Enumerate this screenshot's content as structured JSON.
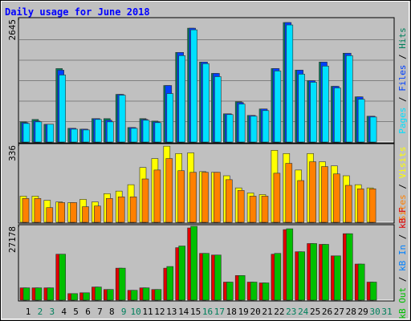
{
  "chart_data": [
    {
      "type": "bar",
      "title": "Daily usage for June 2018",
      "separator": " / ",
      "ylim": [
        0,
        2645
      ],
      "yticks": [
        2645
      ],
      "series": [
        {
          "name": "Hits",
          "color": "#00805c",
          "values": [
            435,
            487,
            383,
            1583,
            296,
            278,
            505,
            505,
            1027,
            313,
            505,
            452,
            1218,
            1931,
            2453,
            1723,
            1479,
            609,
            870,
            574,
            713,
            1583,
            2575,
            1549,
            1322,
            1723,
            1201,
            1914,
            974,
            557,
            0
          ]
        },
        {
          "name": "Files",
          "color": "#0040ff",
          "values": [
            418,
            452,
            383,
            1549,
            296,
            278,
            505,
            470,
            1027,
            313,
            487,
            435,
            1218,
            1931,
            2453,
            1723,
            1479,
            609,
            853,
            574,
            713,
            1583,
            2575,
            1549,
            1322,
            1723,
            1201,
            1914,
            974,
            557,
            0
          ]
        },
        {
          "name": "Pages",
          "color": "#00e0ff",
          "values": [
            400,
            435,
            383,
            1444,
            278,
            261,
            487,
            435,
            1010,
            296,
            470,
            418,
            1044,
            1862,
            2418,
            1688,
            1409,
            592,
            818,
            557,
            678,
            1531,
            2523,
            1462,
            1288,
            1636,
            1166,
            1862,
            922,
            539,
            0
          ]
        }
      ]
    },
    {
      "type": "bar",
      "ylim": [
        0,
        336
      ],
      "yticks": [
        336
      ],
      "series": [
        {
          "name": "Visits",
          "color": "#ffff00",
          "values": [
            114,
            114,
            96,
            89,
            86,
            100,
            89,
            125,
            136,
            164,
            239,
            278,
            332,
            300,
            303,
            221,
            218,
            203,
            150,
            128,
            121,
            314,
            300,
            228,
            300,
            264,
            246,
            203,
            164,
            150,
            0
          ]
        },
        {
          "name": "Sites",
          "color": "#ff8000",
          "values": [
            104,
            104,
            64,
            86,
            86,
            68,
            71,
            104,
            111,
            111,
            189,
            228,
            278,
            225,
            218,
            218,
            218,
            186,
            139,
            114,
            114,
            214,
            257,
            182,
            264,
            243,
            211,
            161,
            146,
            146,
            0
          ]
        }
      ]
    },
    {
      "type": "bar",
      "ylim": [
        0,
        27178
      ],
      "yticks": [
        27178
      ],
      "categories": [
        "1",
        "2",
        "3",
        "4",
        "5",
        "6",
        "7",
        "8",
        "9",
        "10",
        "11",
        "12",
        "13",
        "14",
        "15",
        "16",
        "17",
        "18",
        "19",
        "20",
        "21",
        "22",
        "23",
        "24",
        "25",
        "26",
        "27",
        "28",
        "29",
        "30",
        "31"
      ],
      "category_colors": [
        "#000000",
        "#00805c",
        "#00805c",
        "#000000",
        "#000000",
        "#000000",
        "#000000",
        "#000000",
        "#00805c",
        "#00805c",
        "#000000",
        "#000000",
        "#000000",
        "#000000",
        "#000000",
        "#00805c",
        "#00805c",
        "#000000",
        "#000000",
        "#000000",
        "#000000",
        "#000000",
        "#00805c",
        "#00805c",
        "#000000",
        "#000000",
        "#000000",
        "#000000",
        "#000000",
        "#00805c",
        "#00805c"
      ],
      "series": [
        {
          "name": "kB F",
          "color": "#e00000",
          "values": [
            4530,
            4530,
            4530,
            16912,
            2416,
            2718,
            4832,
            3926,
            11778,
            3624,
            4530,
            3926,
            11778,
            19328,
            26576,
            17214,
            16610,
            6644,
            9060,
            6644,
            6342,
            16912,
            25972,
            17818,
            20838,
            20536,
            16308,
            24462,
            13288,
            6644,
            0
          ]
        },
        {
          "name": "kB In",
          "color": "#0080ff",
          "values": [
            0,
            0,
            0,
            0,
            0,
            0,
            0,
            0,
            0,
            0,
            0,
            0,
            0,
            0,
            0,
            0,
            0,
            0,
            0,
            0,
            0,
            0,
            0,
            0,
            0,
            0,
            0,
            0,
            0,
            0,
            0
          ]
        },
        {
          "name": "kB Out",
          "color": "#00c000",
          "values": [
            4530,
            4530,
            4530,
            16912,
            2416,
            2718,
            4832,
            3926,
            11778,
            3624,
            4530,
            3926,
            12382,
            19932,
            27178,
            17214,
            16610,
            6644,
            9060,
            6644,
            6342,
            17214,
            26274,
            17818,
            20838,
            20536,
            16308,
            24462,
            13288,
            6644,
            0
          ]
        }
      ]
    }
  ]
}
